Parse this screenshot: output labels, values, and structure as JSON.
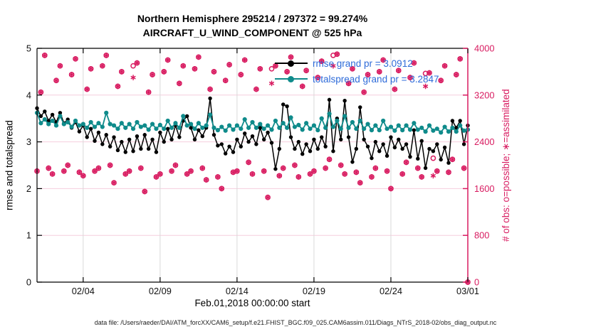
{
  "header": {
    "title_line1": "Northern Hemisphere 295214 / 297372 = 99.274%",
    "title_line2": "AIRCRAFT_U_WIND_COMPONENT @ 525 hPa"
  },
  "legend": {
    "text_color": "#2E6BD9",
    "entries": [
      {
        "label": "rmse grand pr = 3.0912",
        "color": "#000000"
      },
      {
        "label": "totalspread grand pr = 3.2847",
        "color": "#0F8B8B"
      }
    ]
  },
  "footer": {
    "data_file": "data file: /Users/raeder/DAI/ATM_forcXX/CAM6_setup/f.e21.FHIST_BGC.f09_025.CAM6assim.011/Diags_NTrS_2018-02/obs_diag_output.nc"
  },
  "colors": {
    "rmse": "#000000",
    "totalspread": "#0F8B8B",
    "obs": "#D81B60",
    "legend_text": "#2E6BD9",
    "grid_h": "#F6CEDD",
    "grid_v": "#D9D9D9",
    "axis": "#000000",
    "right_axis": "#D81B60",
    "tick_text": "#111111"
  },
  "chart_data": {
    "type": "line",
    "title": "Northern Hemisphere 295214 / 297372 = 99.274% — AIRCRAFT_U_WIND_COMPONENT @ 525 hPa",
    "x_start_label": "Feb.01,2018 00:00:00 start",
    "x_unit": "6-hourly bins, Feb 01 2018 00:00 to Mar 01 2018 00:00",
    "n_points": 113,
    "x_ticks": [
      {
        "t": 12,
        "label": "02/04"
      },
      {
        "t": 32,
        "label": "02/09"
      },
      {
        "t": 52,
        "label": "02/14"
      },
      {
        "t": 72,
        "label": "02/19"
      },
      {
        "t": 92,
        "label": "02/24"
      },
      {
        "t": 112,
        "label": "03/01"
      }
    ],
    "y_left": {
      "label": "rmse and totalspread",
      "min": 0,
      "max": 5,
      "ticks": [
        "0",
        "1",
        "2",
        "3",
        "4",
        "5"
      ],
      "grid": [
        1,
        2,
        3,
        4
      ]
    },
    "y_right": {
      "label": "# of obs: o=possible; ∗=assimilated",
      "min": 0,
      "max": 4000,
      "ticks": [
        "0",
        "800",
        "1600",
        "2400",
        "3200",
        "4000"
      ]
    },
    "series": [
      {
        "name": "rmse",
        "axis": "left",
        "color": "#000000",
        "marker": "dot",
        "grand_mean": 3.0912,
        "values": [
          3.72,
          3.55,
          3.65,
          3.45,
          3.58,
          3.42,
          3.62,
          3.4,
          3.48,
          3.3,
          3.42,
          3.22,
          3.35,
          3.1,
          3.28,
          3.02,
          3.2,
          2.95,
          3.15,
          2.9,
          3.1,
          2.82,
          3.0,
          2.78,
          3.05,
          2.8,
          3.12,
          2.85,
          3.15,
          2.85,
          3.05,
          2.78,
          3.2,
          3.0,
          3.28,
          3.05,
          3.35,
          3.1,
          3.45,
          3.55,
          3.3,
          3.05,
          3.25,
          3.12,
          3.3,
          3.93,
          3.15,
          2.92,
          2.95,
          2.75,
          2.9,
          2.78,
          3.05,
          2.9,
          3.18,
          3.0,
          3.12,
          2.95,
          3.3,
          3.05,
          3.2,
          2.98,
          2.42,
          2.85,
          3.8,
          3.76,
          3.1,
          2.85,
          3.0,
          2.74,
          2.95,
          2.8,
          3.05,
          2.85,
          3.1,
          2.9,
          3.9,
          2.8,
          3.5,
          3.05,
          3.88,
          3.1,
          2.57,
          2.85,
          3.74,
          3.05,
          2.9,
          2.65,
          3.0,
          2.8,
          2.95,
          2.7,
          3.1,
          2.88,
          3.05,
          2.85,
          2.95,
          2.68,
          3.25,
          2.64,
          3.02,
          2.44,
          2.85,
          2.8,
          2.95,
          2.62,
          2.88,
          2.55,
          3.45,
          3.3,
          3.45,
          2.95,
          3.35
        ]
      },
      {
        "name": "totalspread",
        "axis": "left",
        "color": "#0F8B8B",
        "marker": "dot",
        "grand_mean": 3.2847,
        "values": [
          3.62,
          3.4,
          3.48,
          3.38,
          3.45,
          3.35,
          3.55,
          3.38,
          3.42,
          3.32,
          3.45,
          3.35,
          3.38,
          3.3,
          3.42,
          3.32,
          3.4,
          3.32,
          3.62,
          3.38,
          3.35,
          3.28,
          3.4,
          3.3,
          3.38,
          3.28,
          3.42,
          3.32,
          3.35,
          3.26,
          3.38,
          3.28,
          3.36,
          3.28,
          3.45,
          3.3,
          3.4,
          3.3,
          3.55,
          3.35,
          3.38,
          3.28,
          3.4,
          3.3,
          3.35,
          3.58,
          3.3,
          3.25,
          3.32,
          3.24,
          3.35,
          3.26,
          3.35,
          3.28,
          3.48,
          3.3,
          3.42,
          3.3,
          3.38,
          3.28,
          3.35,
          3.26,
          3.45,
          3.3,
          3.4,
          3.3,
          3.52,
          3.32,
          3.36,
          3.26,
          3.4,
          3.28,
          3.35,
          3.25,
          3.5,
          3.3,
          3.6,
          3.32,
          3.45,
          3.28,
          3.55,
          3.3,
          3.42,
          3.28,
          3.45,
          3.28,
          3.38,
          3.25,
          3.35,
          3.25,
          3.45,
          3.28,
          3.32,
          3.24,
          3.35,
          3.25,
          3.35,
          3.26,
          3.4,
          3.26,
          3.3,
          3.22,
          3.35,
          3.24,
          3.28,
          3.2,
          3.32,
          3.22,
          3.3,
          3.22,
          3.35,
          3.24,
          3.26
        ]
      },
      {
        "name": "possible",
        "axis": "right",
        "color": "#D81B60",
        "marker": "o",
        "values": [
          1900,
          3250,
          3880,
          1950,
          1850,
          3450,
          3700,
          1900,
          2000,
          3550,
          3820,
          1880,
          1820,
          3300,
          3650,
          1900,
          1950,
          3700,
          3880,
          2000,
          1700,
          3350,
          3600,
          1850,
          1900,
          3700,
          3750,
          1950,
          1550,
          3250,
          3550,
          1800,
          1850,
          3600,
          3800,
          1900,
          2000,
          3400,
          3700,
          1850,
          1900,
          3650,
          3850,
          1950,
          1750,
          3300,
          3600,
          1800,
          1600,
          3450,
          3720,
          1880,
          1900,
          3550,
          3800,
          2050,
          1850,
          3300,
          3650,
          1900,
          1450,
          3650,
          3700,
          1820,
          1950,
          3600,
          3850,
          2000,
          1800,
          3350,
          3620,
          1850,
          1900,
          3500,
          3780,
          1950,
          2100,
          3880,
          3900,
          2000,
          1850,
          3400,
          3650,
          1880,
          1700,
          3250,
          3550,
          1800,
          1950,
          3600,
          3800,
          1900,
          1600,
          3300,
          3620,
          1850,
          2050,
          3500,
          3750,
          1950,
          1800,
          3570,
          3580,
          2120,
          1900,
          3450,
          3700,
          1880,
          2100,
          3550,
          3820,
          1950,
          0
        ]
      },
      {
        "name": "assimilated",
        "axis": "right",
        "color": "#D81B60",
        "marker": "*",
        "values": [
          1900,
          3250,
          3880,
          1950,
          1850,
          3450,
          3700,
          1900,
          2000,
          3550,
          3820,
          1880,
          1820,
          3300,
          3650,
          1900,
          1950,
          3700,
          3880,
          2000,
          1700,
          3350,
          3600,
          1850,
          1900,
          3500,
          3750,
          1950,
          1550,
          3250,
          3550,
          1800,
          1850,
          3600,
          3800,
          1900,
          2000,
          3400,
          3700,
          1850,
          1900,
          3650,
          3850,
          1950,
          1750,
          3300,
          3600,
          1800,
          1600,
          3450,
          3720,
          1880,
          1900,
          3550,
          3800,
          2050,
          1850,
          3300,
          3650,
          1900,
          1450,
          3400,
          3700,
          1820,
          1950,
          3600,
          3850,
          2000,
          1800,
          3350,
          3620,
          1850,
          1900,
          3500,
          3780,
          1950,
          2100,
          3700,
          3900,
          2000,
          1850,
          3400,
          3650,
          1880,
          1700,
          3250,
          3550,
          1800,
          1950,
          3600,
          3800,
          1900,
          1600,
          3300,
          3620,
          1850,
          2050,
          3500,
          3750,
          1950,
          1800,
          3350,
          3580,
          1820,
          1900,
          3450,
          3700,
          1880,
          2100,
          3550,
          3820,
          1950,
          0
        ]
      }
    ]
  }
}
